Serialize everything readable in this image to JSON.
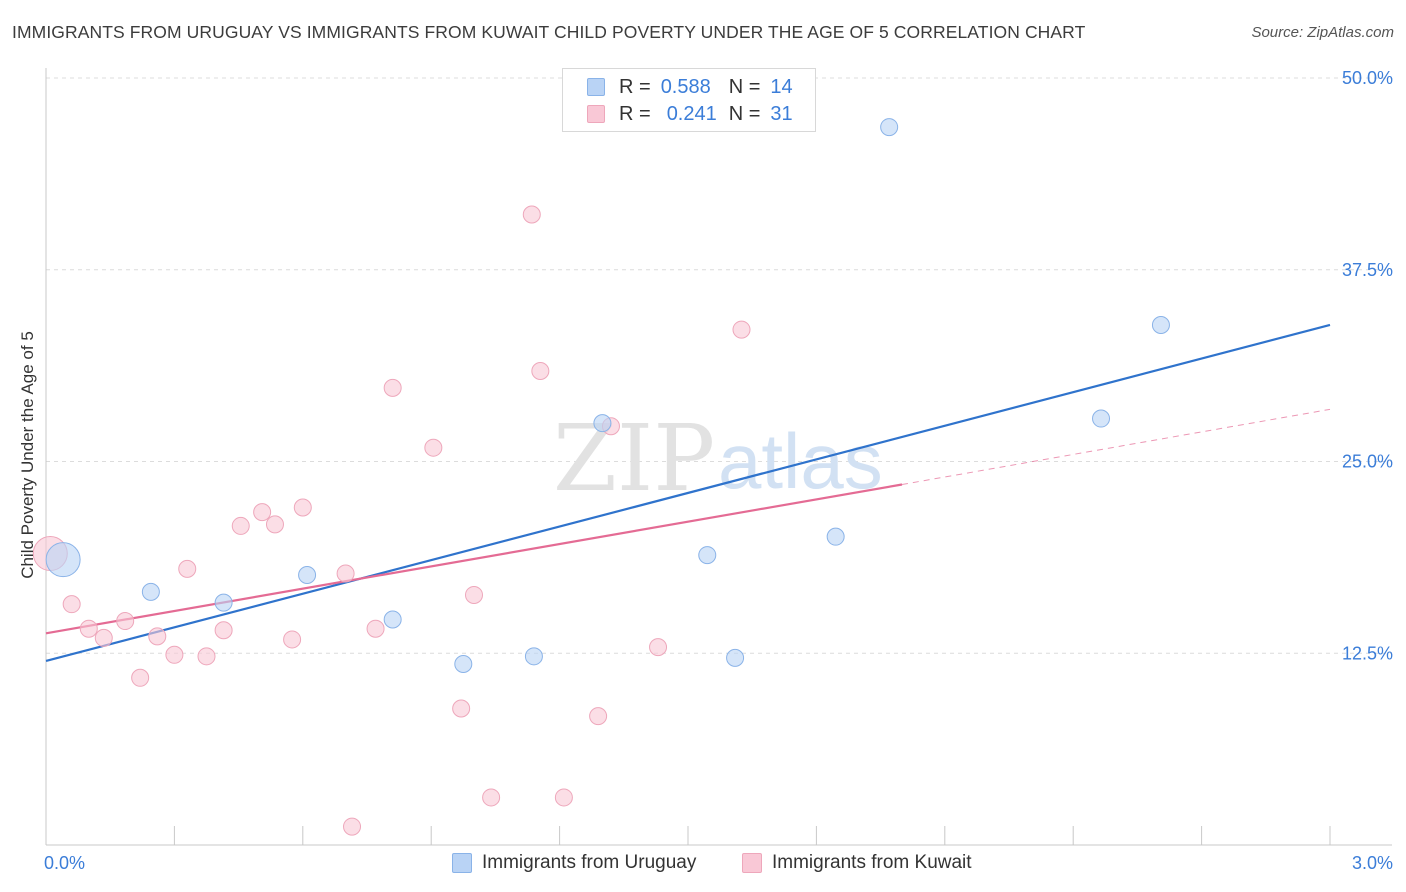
{
  "title": "IMMIGRANTS FROM URUGUAY VS IMMIGRANTS FROM KUWAIT CHILD POVERTY UNDER THE AGE OF 5 CORRELATION CHART",
  "source": "Source: ZipAtlas.com",
  "watermark": {
    "zip": "ZIP",
    "atlas": "atlas"
  },
  "colors": {
    "uruguay_fill": "#b9d3f5",
    "uruguay_stroke": "#8ab3e8",
    "uruguay_line": "#2f73cc",
    "kuwait_fill": "#f9c8d6",
    "kuwait_stroke": "#eea7bb",
    "kuwait_line": "#e46b94",
    "axis_label": "#3b7dd8"
  },
  "legend": {
    "uruguay": {
      "r_label": "R =",
      "r_value": "0.588",
      "n_label": "N =",
      "n_value": "14"
    },
    "kuwait": {
      "r_label": "R =",
      "r_value": "0.241",
      "n_label": "N =",
      "n_value": "31"
    }
  },
  "bottom_legend": {
    "uruguay": "Immigrants from Uruguay",
    "kuwait": "Immigrants from Kuwait"
  },
  "chart_data": {
    "type": "scatter",
    "title": "IMMIGRANTS FROM URUGUAY VS IMMIGRANTS FROM KUWAIT CHILD POVERTY UNDER THE AGE OF 5 CORRELATION CHART",
    "xlabel": "",
    "ylabel": "Child Poverty Under the Age of 5",
    "xlim": [
      0,
      3.0
    ],
    "ylim": [
      0,
      50
    ],
    "x_tick_labels": [
      "0.0%",
      "3.0%"
    ],
    "y_ticks": [
      12.5,
      25.0,
      37.5,
      50.0
    ],
    "y_tick_labels": [
      "12.5%",
      "25.0%",
      "37.5%",
      "50.0%"
    ],
    "grid": true,
    "series": [
      {
        "name": "Immigrants from Uruguay",
        "R": 0.588,
        "N": 14,
        "points": [
          {
            "x": 0.04,
            "y": 18.6,
            "big": true
          },
          {
            "x": 0.245,
            "y": 16.5
          },
          {
            "x": 0.415,
            "y": 15.8
          },
          {
            "x": 0.61,
            "y": 17.6
          },
          {
            "x": 0.81,
            "y": 14.7
          },
          {
            "x": 0.975,
            "y": 11.8
          },
          {
            "x": 1.14,
            "y": 12.3
          },
          {
            "x": 1.3,
            "y": 27.5
          },
          {
            "x": 1.545,
            "y": 18.9
          },
          {
            "x": 1.61,
            "y": 12.2
          },
          {
            "x": 1.845,
            "y": 20.1
          },
          {
            "x": 1.97,
            "y": 46.8
          },
          {
            "x": 2.465,
            "y": 27.8
          },
          {
            "x": 2.605,
            "y": 33.9
          }
        ],
        "trend": {
          "x": [
            0.0,
            3.0
          ],
          "y": [
            12.0,
            33.9
          ]
        }
      },
      {
        "name": "Immigrants from Kuwait",
        "R": 0.241,
        "N": 31,
        "points": [
          {
            "x": 0.01,
            "y": 19.0,
            "big": true
          },
          {
            "x": 0.06,
            "y": 15.7
          },
          {
            "x": 0.1,
            "y": 14.1
          },
          {
            "x": 0.135,
            "y": 13.5
          },
          {
            "x": 0.185,
            "y": 14.6
          },
          {
            "x": 0.22,
            "y": 10.9
          },
          {
            "x": 0.26,
            "y": 13.6
          },
          {
            "x": 0.3,
            "y": 12.4
          },
          {
            "x": 0.33,
            "y": 18.0
          },
          {
            "x": 0.375,
            "y": 12.3
          },
          {
            "x": 0.415,
            "y": 14.0
          },
          {
            "x": 0.455,
            "y": 20.8
          },
          {
            "x": 0.505,
            "y": 21.7
          },
          {
            "x": 0.535,
            "y": 20.9
          },
          {
            "x": 0.575,
            "y": 13.4
          },
          {
            "x": 0.6,
            "y": 22.0
          },
          {
            "x": 0.7,
            "y": 17.7
          },
          {
            "x": 0.715,
            "y": 1.2
          },
          {
            "x": 0.77,
            "y": 14.1
          },
          {
            "x": 0.81,
            "y": 29.8
          },
          {
            "x": 0.905,
            "y": 25.9
          },
          {
            "x": 0.97,
            "y": 8.9
          },
          {
            "x": 1.0,
            "y": 16.3
          },
          {
            "x": 1.04,
            "y": 3.1
          },
          {
            "x": 1.135,
            "y": 41.1
          },
          {
            "x": 1.155,
            "y": 30.9
          },
          {
            "x": 1.21,
            "y": 3.1
          },
          {
            "x": 1.29,
            "y": 8.4
          },
          {
            "x": 1.32,
            "y": 27.3
          },
          {
            "x": 1.43,
            "y": 12.9
          },
          {
            "x": 1.625,
            "y": 33.6
          }
        ],
        "trend": {
          "x": [
            0.0,
            2.0
          ],
          "y": [
            13.8,
            23.5
          ]
        },
        "trend_dashed": {
          "x": [
            2.0,
            3.0
          ],
          "y": [
            23.5,
            28.4
          ]
        }
      }
    ]
  }
}
